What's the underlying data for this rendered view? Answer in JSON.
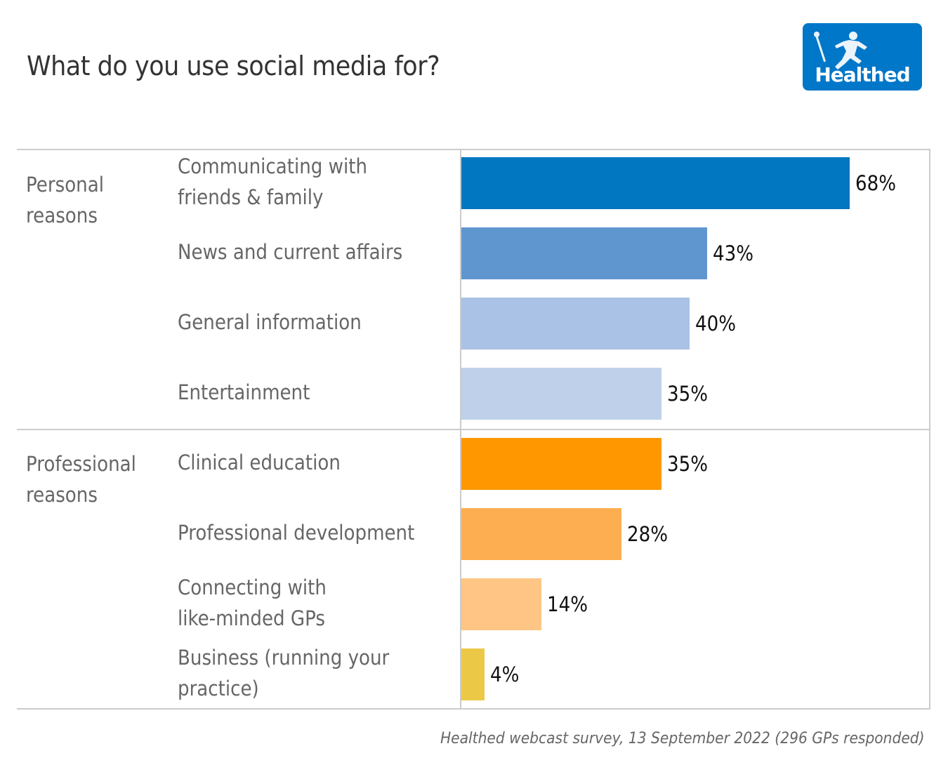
{
  "header": {
    "title": "What do you use social media for?",
    "logo_text": "Healthed"
  },
  "footer": {
    "source": "Healthed webcast survey, 13 September 2022 (296 GPs responded)"
  },
  "chart_data": {
    "type": "bar",
    "orientation": "horizontal",
    "title": "What do you use social media for?",
    "xlabel": "",
    "ylabel": "",
    "xlim": [
      0,
      80
    ],
    "unit": "%",
    "grid": false,
    "groups": [
      {
        "name": "Personal\nreasons",
        "label_lines": [
          "Personal",
          "reasons"
        ],
        "categories": [
          {
            "label": "Communicating with\nfriends & family",
            "value": 68,
            "value_label": "68%",
            "color": "#0077c0"
          },
          {
            "label": "News and current affairs",
            "value": 43,
            "value_label": "43%",
            "color": "#6096cf"
          },
          {
            "label": "General information",
            "value": 40,
            "value_label": "40%",
            "color": "#a9c2e5"
          },
          {
            "label": "Entertainment",
            "value": 35,
            "value_label": "35%",
            "color": "#bfd1ea"
          }
        ]
      },
      {
        "name": "Professional\nreasons",
        "label_lines": [
          "Professional",
          "reasons"
        ],
        "categories": [
          {
            "label": "Clinical education",
            "value": 35,
            "value_label": "35%",
            "color": "#ff9800"
          },
          {
            "label": "Professional development",
            "value": 28,
            "value_label": "28%",
            "color": "#fcae50"
          },
          {
            "label": "Connecting with\nlike-minded GPs",
            "value": 14,
            "value_label": "14%",
            "color": "#fec585"
          },
          {
            "label": "Business (running your\npractice)",
            "value": 4,
            "value_label": "4%",
            "color": "#ebc947"
          }
        ]
      }
    ]
  },
  "colors": {
    "brand": "#0077c8",
    "frame": "#cccccc",
    "label_text": "#666666"
  }
}
